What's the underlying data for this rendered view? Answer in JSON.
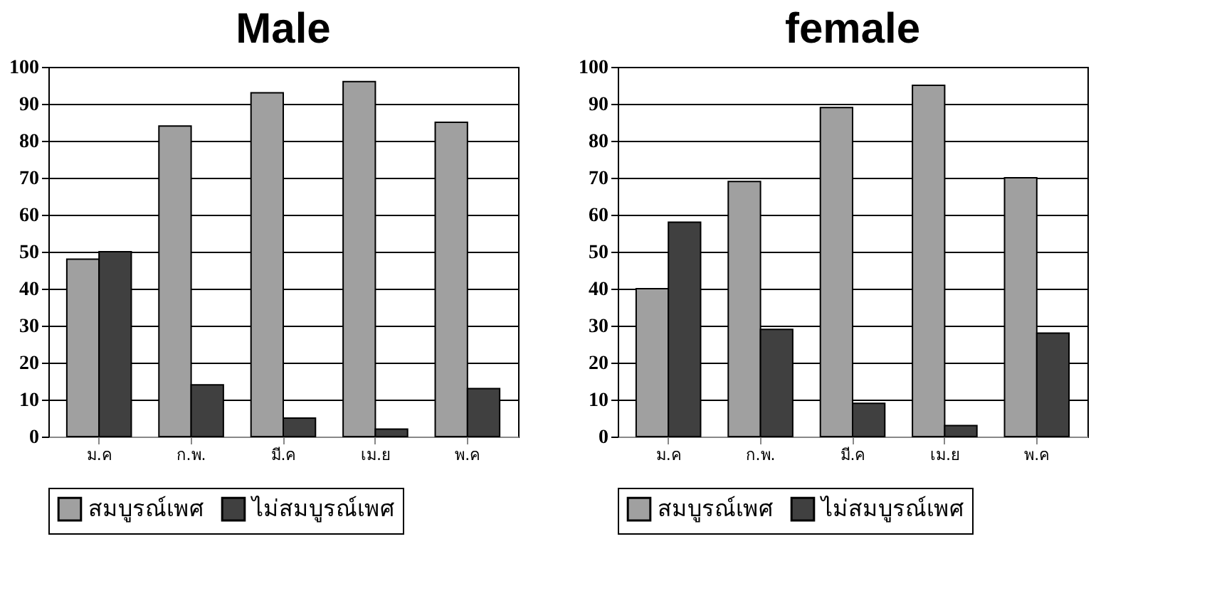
{
  "chart_data": [
    {
      "type": "bar",
      "title": "Male",
      "categories": [
        "ม.ค",
        "ก.พ.",
        "มี.ค",
        "เม.ย",
        "พ.ค"
      ],
      "series": [
        {
          "name": "สมบูรณ์เพศ",
          "color": "#a0a0a0",
          "values": [
            48,
            84,
            93,
            96,
            85
          ]
        },
        {
          "name": "ไม่สมบูรณ์เพศ",
          "color": "#404040",
          "values": [
            50,
            14,
            5,
            2,
            13
          ]
        }
      ],
      "ylim": [
        0,
        100
      ],
      "yticks": [
        0,
        10,
        20,
        30,
        40,
        50,
        60,
        70,
        80,
        90,
        100
      ],
      "grid": "y",
      "legend": "bottom"
    },
    {
      "type": "bar",
      "title": "female",
      "categories": [
        "ม.ค",
        "ก.พ.",
        "มี.ค",
        "เม.ย",
        "พ.ค"
      ],
      "series": [
        {
          "name": "สมบูรณ์เพศ",
          "color": "#a0a0a0",
          "values": [
            40,
            69,
            89,
            95,
            70
          ]
        },
        {
          "name": "ไม่สมบูรณ์เพศ",
          "color": "#404040",
          "values": [
            58,
            29,
            9,
            3,
            28
          ]
        }
      ],
      "ylim": [
        0,
        100
      ],
      "yticks": [
        0,
        10,
        20,
        30,
        40,
        50,
        60,
        70,
        80,
        90,
        100
      ],
      "grid": "y",
      "legend": "bottom"
    }
  ]
}
